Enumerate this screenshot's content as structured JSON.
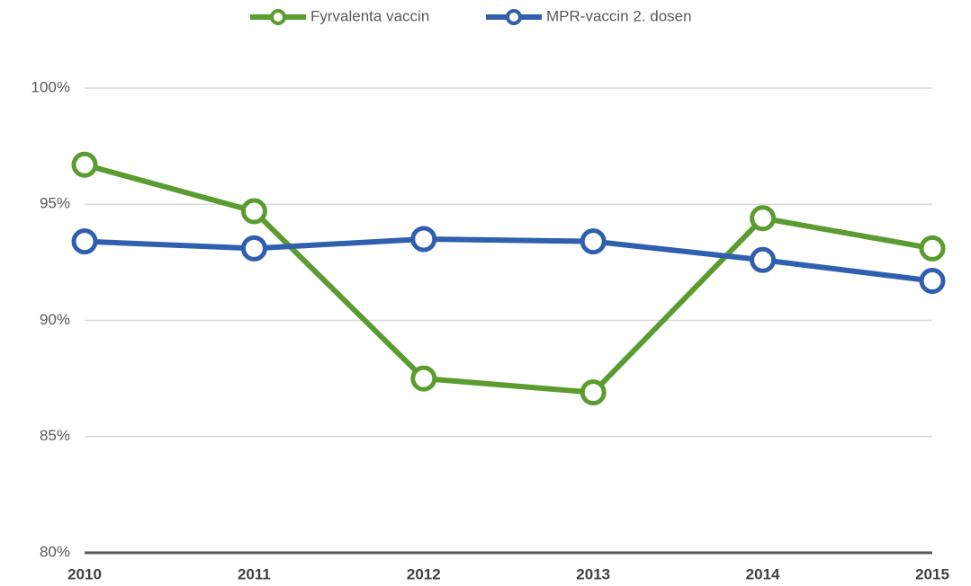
{
  "chart_data": {
    "type": "line",
    "categories": [
      "2010",
      "2011",
      "2012",
      "2013",
      "2014",
      "2015"
    ],
    "series": [
      {
        "name": "Fyrvalenta vaccin",
        "color": "#5b9c30",
        "values": [
          96.7,
          94.7,
          87.5,
          86.9,
          94.4,
          93.1
        ]
      },
      {
        "name": "MPR-vaccin 2. dosen",
        "color": "#2f5fae",
        "values": [
          93.4,
          93.1,
          93.5,
          93.4,
          92.6,
          91.7
        ]
      }
    ],
    "ylim": [
      80,
      100
    ],
    "yticks": [
      {
        "value": 80,
        "label": "80%"
      },
      {
        "value": 85,
        "label": "85%"
      },
      {
        "value": 90,
        "label": "90%"
      },
      {
        "value": 95,
        "label": "95%"
      },
      {
        "value": 100,
        "label": "100%"
      }
    ],
    "grid": true,
    "legend": "top"
  }
}
